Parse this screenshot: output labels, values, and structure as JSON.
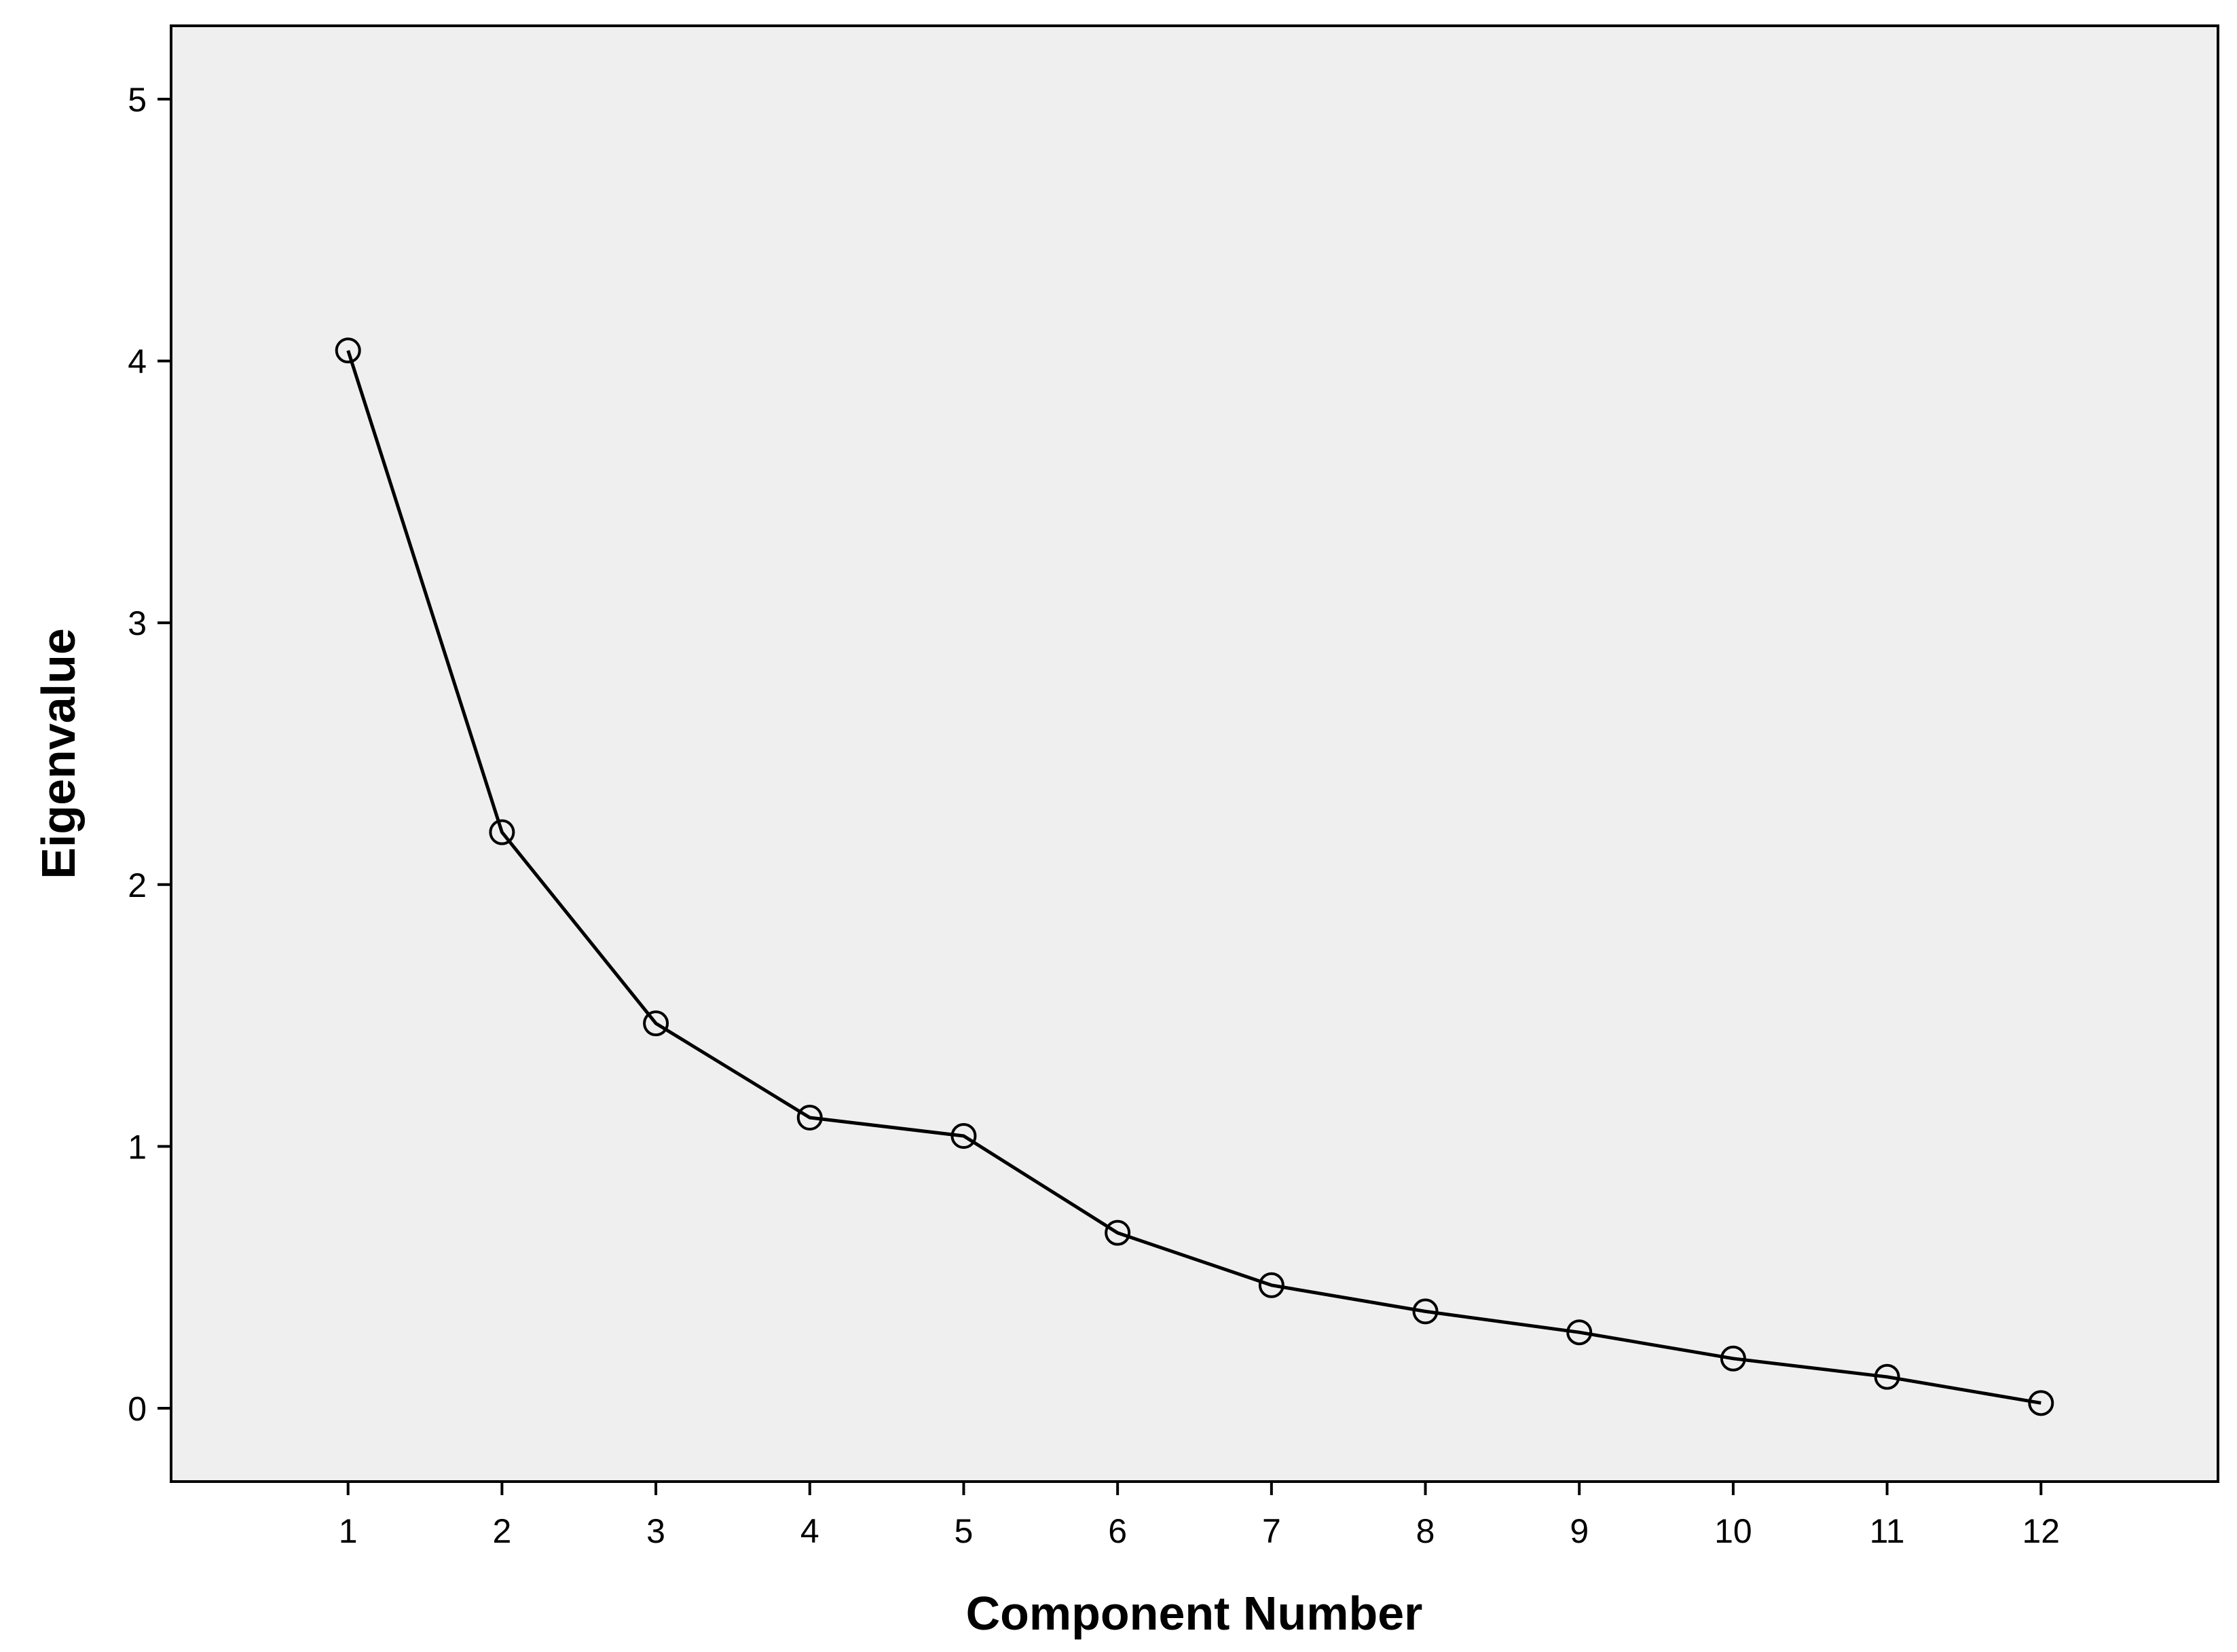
{
  "chart_data": {
    "type": "line",
    "title": "",
    "xlabel": "Component Number",
    "ylabel": "Eigenvalue",
    "x": [
      1,
      2,
      3,
      4,
      5,
      6,
      7,
      8,
      9,
      10,
      11,
      12
    ],
    "xlim": [
      -0.15,
      13.15
    ],
    "ylim": [
      -0.28,
      5.28
    ],
    "yticks": [
      0,
      1,
      2,
      3,
      4,
      5
    ],
    "series": [
      {
        "values": [
          4.04,
          2.2,
          1.47,
          1.11,
          1.04,
          0.67,
          0.47,
          0.37,
          0.29,
          0.19,
          0.12,
          0.02
        ]
      }
    ],
    "marker": "hollow-circle",
    "grid": false,
    "legend": "none",
    "colors": {
      "plot_background": "#efefef",
      "line": "#000000",
      "axes": "#000000"
    }
  }
}
